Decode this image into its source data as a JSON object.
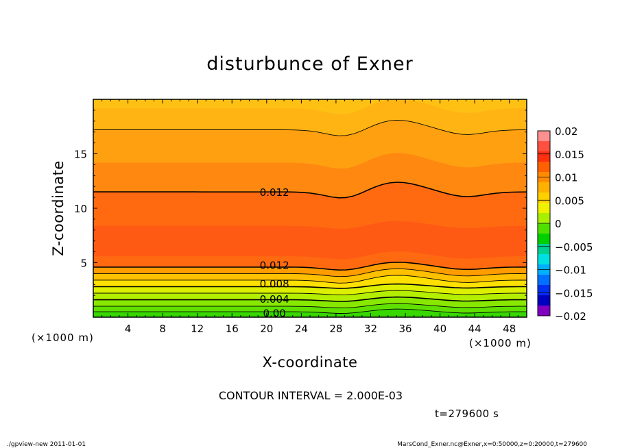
{
  "chart_data": {
    "type": "heatmap",
    "title": "disturbunce of Exner",
    "xlabel": "X-coordinate",
    "ylabel": "Z-coordinate",
    "x_unit": "(×1000 m)",
    "y_unit": "(×1000 m)",
    "xlim": [
      0,
      50
    ],
    "ylim": [
      0,
      20
    ],
    "x_ticks": [
      4,
      8,
      12,
      16,
      20,
      24,
      28,
      32,
      36,
      40,
      44,
      48
    ],
    "y_ticks": [
      5,
      10,
      15
    ],
    "contour_interval_text": "CONTOUR INTERVAL = 2.000E-03",
    "time_text": "t=279600 s",
    "contour_labels": [
      {
        "text": "0.012",
        "x": 19,
        "z": 11.5
      },
      {
        "text": "0.012",
        "x": 19,
        "z": 4.8
      },
      {
        "text": "0.008",
        "x": 19,
        "z": 3.1
      },
      {
        "text": "0.004",
        "x": 19,
        "z": 1.7
      },
      {
        "text": "0.00",
        "x": 19,
        "z": 0.4
      }
    ],
    "colorbar": {
      "ticks": [
        "0.02",
        "0.015",
        "0.01",
        "0.005",
        "0",
        "−0.005",
        "−0.01",
        "−0.015",
        "−0.02"
      ],
      "colors": [
        "#ff9090",
        "#ff5040",
        "#ff3010",
        "#ff6000",
        "#ff8c00",
        "#ffb000",
        "#ffd000",
        "#f0f000",
        "#a8f000",
        "#50e000",
        "#00d000",
        "#00d090",
        "#00e0e0",
        "#00b0ff",
        "#0070ff",
        "#0030f0",
        "#0000c0",
        "#8000c0"
      ]
    },
    "layers": [
      {
        "z": 0.0,
        "value": "0.000",
        "color": "#36d800"
      },
      {
        "z": 0.5,
        "value": "0.002",
        "color": "#5fe000"
      },
      {
        "z": 1.0,
        "value": "0.003",
        "color": "#88e800"
      },
      {
        "z": 1.6,
        "value": "0.004",
        "color": "#b4ee00"
      },
      {
        "z": 2.2,
        "value": "0.006",
        "color": "#dcf000"
      },
      {
        "z": 2.8,
        "value": "0.008",
        "color": "#ffe000"
      },
      {
        "z": 3.4,
        "value": "0.009",
        "color": "#ffc000"
      },
      {
        "z": 4.0,
        "value": "0.010",
        "color": "#ff9c00"
      },
      {
        "z": 4.6,
        "value": "0.012",
        "color": "#ff6a10"
      },
      {
        "z": 5.6,
        "value": "0.013",
        "color": "#ff5a14"
      },
      {
        "z": 8.4,
        "value": "0.014",
        "color": "#ff6a10"
      },
      {
        "z": 11.5,
        "value": "0.012",
        "color": "#ff8810"
      },
      {
        "z": 14.2,
        "value": "0.010",
        "color": "#ffa010"
      },
      {
        "z": 17.2,
        "value": "0.008",
        "color": "#ffb414"
      },
      {
        "z": 19.2,
        "value": "0.007",
        "color": "#ffc014"
      }
    ]
  },
  "footer": {
    "left": "./gpview-new   2011-01-01",
    "right": "MarsCond_Exner.nc@Exner,x=0:50000,z=0:20000,t=279600"
  }
}
